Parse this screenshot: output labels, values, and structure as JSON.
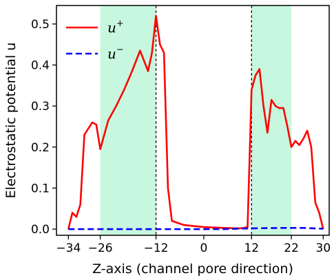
{
  "chart_data": {
    "type": "line",
    "title": "",
    "xlabel": "Z-axis (channel pore direction)",
    "ylabel": "Electrostatic potential u",
    "xlim": [
      -37,
      31.5
    ],
    "ylim": [
      -0.015,
      0.545
    ],
    "xticks": [
      -34,
      -26,
      -12,
      0,
      12,
      22,
      30
    ],
    "xtick_labels": [
      "−34",
      "−26",
      "−12",
      "0",
      "12",
      "22",
      "30"
    ],
    "yticks": [
      0.0,
      0.1,
      0.2,
      0.3,
      0.4,
      0.5
    ],
    "ytick_labels": [
      "0.0",
      "0.1",
      "0.2",
      "0.3",
      "0.4",
      "0.5"
    ],
    "grid": false,
    "legend_position": "top-left",
    "shaded_regions": [
      {
        "x0": -26,
        "x1": -12,
        "color": "#c8f7df"
      },
      {
        "x0": 12,
        "x1": 22,
        "color": "#c8f7df"
      }
    ],
    "vlines": [
      {
        "x": -12,
        "style": "dashed",
        "color": "#000000"
      },
      {
        "x": 12,
        "style": "dashed",
        "color": "#000000"
      }
    ],
    "series": [
      {
        "name": "u⁺",
        "name_base": "u",
        "name_sup": "+",
        "color": "#ff0000",
        "style": "solid",
        "x": [
          -34,
          -33,
          -32,
          -31,
          -30,
          -29,
          -28,
          -27,
          -26,
          -24,
          -22,
          -20,
          -18,
          -17,
          -16,
          -15,
          -14,
          -13,
          -12,
          -11,
          -10,
          -9,
          -8,
          -5,
          0,
          5,
          8,
          9,
          10,
          11,
          12,
          13,
          14,
          15,
          16,
          17,
          18,
          19,
          20,
          21,
          22,
          23,
          24,
          25,
          26,
          27,
          28,
          29,
          30
        ],
        "y": [
          0.0,
          0.04,
          0.03,
          0.06,
          0.23,
          0.245,
          0.26,
          0.255,
          0.195,
          0.265,
          0.3,
          0.34,
          0.385,
          0.41,
          0.435,
          0.41,
          0.385,
          0.43,
          0.52,
          0.45,
          0.43,
          0.1,
          0.02,
          0.01,
          0.005,
          0.003,
          0.002,
          0.002,
          0.003,
          0.005,
          0.34,
          0.375,
          0.39,
          0.3,
          0.235,
          0.315,
          0.3,
          0.295,
          0.295,
          0.25,
          0.2,
          0.215,
          0.205,
          0.22,
          0.24,
          0.2,
          0.065,
          0.04,
          0.0
        ]
      },
      {
        "name": "u⁻",
        "name_base": "u",
        "name_sup": "−",
        "color": "#0000ff",
        "style": "dashed",
        "x": [
          -34,
          -30,
          -20,
          -12,
          -5,
          0,
          5,
          12,
          20,
          25,
          30
        ],
        "y": [
          0.0,
          0.0,
          0.0,
          0.0,
          0.0,
          0.0,
          0.0,
          0.002,
          0.003,
          0.003,
          0.001
        ]
      }
    ]
  }
}
